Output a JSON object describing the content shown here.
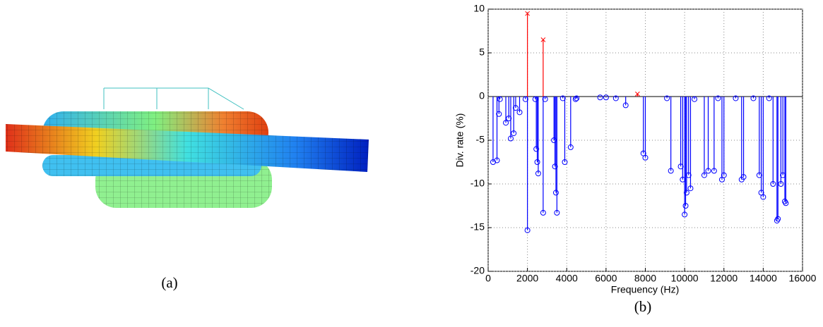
{
  "chart_data": {
    "type": "stem",
    "xlabel": "Frequency (Hz)",
    "ylabel": "Div. rate (%)",
    "caption": "(b)",
    "xlim": [
      0,
      16000
    ],
    "xticks": [
      0,
      2000,
      4000,
      6000,
      8000,
      10000,
      12000,
      14000,
      16000
    ],
    "ylim": [
      -20,
      10
    ],
    "yticks": [
      -20,
      -15,
      -10,
      -5,
      0,
      5,
      10
    ],
    "grid": true,
    "series": [
      {
        "color": "#0000ff",
        "marker": "o",
        "x": [
          250,
          450,
          550,
          600,
          900,
          1050,
          1150,
          1300,
          1400,
          1600,
          1900,
          2000,
          2400,
          2450,
          2500,
          2550,
          2800,
          2900,
          3350,
          3400,
          3450,
          3500,
          3800,
          3900,
          4200,
          4450,
          4500,
          5700,
          6000,
          6500,
          7000,
          7900,
          8000,
          9100,
          9300,
          9800,
          9900,
          10000,
          10050,
          10100,
          10200,
          10300,
          10500,
          11000,
          11200,
          11500,
          11700,
          11900,
          12000,
          12600,
          12900,
          13000,
          13500,
          13800,
          13900,
          14000,
          14300,
          14500,
          14700,
          14750,
          14900,
          15000,
          15100,
          15150
        ],
        "values": [
          -7.5,
          -7.3,
          -2,
          -0.3,
          -3,
          -2.5,
          -4.8,
          -4.2,
          -1.3,
          -1.8,
          -0.3,
          -15.3,
          -0.3,
          -6,
          -7.5,
          -8.8,
          -13.3,
          -0.3,
          -5,
          -8,
          -11,
          -13.3,
          -0.2,
          -7.5,
          -5.8,
          -0.3,
          -0.2,
          -0.1,
          -0.1,
          -0.2,
          -1,
          -6.5,
          -7,
          -0.2,
          -8.5,
          -8,
          -9.5,
          -13.5,
          -12.5,
          -11,
          -9,
          -10.5,
          -0.3,
          -9,
          -8.5,
          -8.5,
          -0.2,
          -9.5,
          -9,
          -0.2,
          -9.5,
          -9.2,
          -0.2,
          -9,
          -11,
          -11.5,
          -0.2,
          -10,
          -14.2,
          -14,
          -10,
          -9,
          -12,
          -12.2
        ]
      },
      {
        "color": "#ff0000",
        "marker": "x",
        "x": [
          2000,
          2800,
          7600
        ],
        "values": [
          9.5,
          6.5,
          0.3
        ]
      }
    ]
  },
  "figure_a": {
    "caption": "(a)"
  }
}
